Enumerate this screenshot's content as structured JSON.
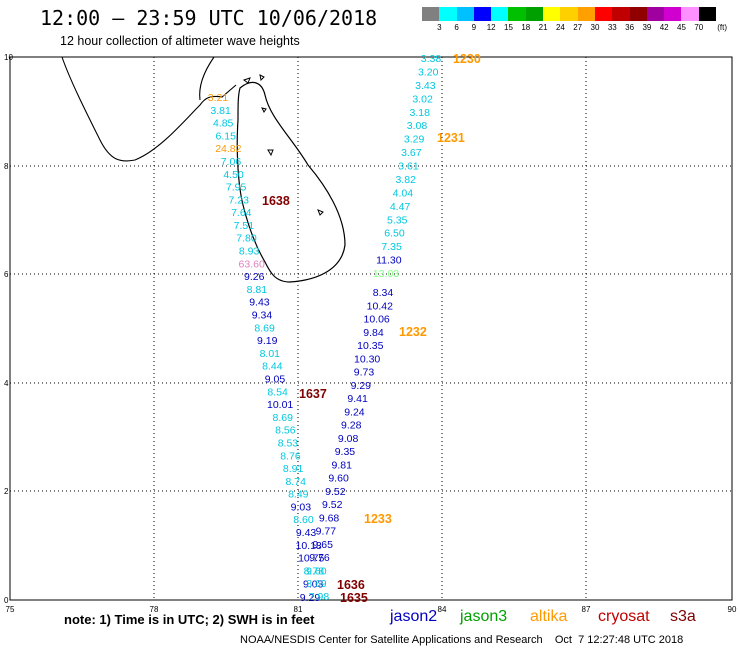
{
  "title": "12:00 – 23:59 UTC 10/06/2018",
  "subtitle": "12 hour collection of altimeter wave heights",
  "scale": {
    "unit_label": "(ft)",
    "colors": [
      "#808080",
      "#00ffff",
      "#00c0ff",
      "#0000ff",
      "#00ffff",
      "#00c000",
      "#00a000",
      "#ffff00",
      "#ffd000",
      "#ffa000",
      "#ff0000",
      "#c00000",
      "#900000",
      "#a000a0",
      "#d000d0",
      "#ff90ff",
      "#000000"
    ],
    "labels": [
      "3",
      "6",
      "9",
      "12",
      "15",
      "18",
      "21",
      "24",
      "27",
      "30",
      "33",
      "36",
      "39",
      "42",
      "45",
      "70"
    ]
  },
  "axes": {
    "x_ticks": [
      "75",
      "78",
      "81",
      "84",
      "87",
      "90"
    ],
    "y_ticks": [
      "10",
      "8",
      "6",
      "4",
      "2",
      "0"
    ]
  },
  "colors": {
    "jason2": "#0000c0",
    "jason3": "#00a000",
    "altika": "#ff9900",
    "cryosat": "#c00000",
    "s3a": "#800000",
    "cyan": "#00c8e0",
    "mauve": "#e080c0",
    "green_light": "#80ff80"
  },
  "track_times": {
    "east_top": "1230",
    "east_mid": "1231",
    "east_lower": "1232",
    "east_bottom": "1233",
    "west_top": "1638",
    "west_mid": "1637",
    "west_bottom_a": "1636",
    "west_bottom_b": "1635"
  },
  "east_track": [
    {
      "v": "3.38",
      "c": "cyan"
    },
    {
      "v": "3.20",
      "c": "cyan"
    },
    {
      "v": "3.43",
      "c": "cyan"
    },
    {
      "v": "3.02",
      "c": "cyan"
    },
    {
      "v": "3.18",
      "c": "cyan"
    },
    {
      "v": "3.08",
      "c": "cyan"
    },
    {
      "v": "3.29",
      "c": "cyan"
    },
    {
      "v": "3.67",
      "c": "cyan"
    },
    {
      "v": "3.61",
      "c": "cyan"
    },
    {
      "v": "3.82",
      "c": "cyan"
    },
    {
      "v": "4.04",
      "c": "cyan"
    },
    {
      "v": "4.47",
      "c": "cyan"
    },
    {
      "v": "5.35",
      "c": "cyan"
    },
    {
      "v": "6.50",
      "c": "cyan"
    },
    {
      "v": "7.35",
      "c": "cyan"
    },
    {
      "v": "11.30",
      "c": "jason2"
    },
    {
      "v": "13.03",
      "c": "green_light"
    }
  ],
  "east_track2": [
    {
      "v": "8.34",
      "c": "jason2"
    },
    {
      "v": "10.42",
      "c": "jason2"
    },
    {
      "v": "10.06",
      "c": "jason2"
    },
    {
      "v": "9.84",
      "c": "jason2"
    },
    {
      "v": "10.35",
      "c": "jason2"
    },
    {
      "v": "10.30",
      "c": "jason2"
    },
    {
      "v": "9.73",
      "c": "jason2"
    },
    {
      "v": "9.29",
      "c": "jason2"
    },
    {
      "v": "9.41",
      "c": "jason2"
    },
    {
      "v": "9.24",
      "c": "jason2"
    },
    {
      "v": "9.28",
      "c": "jason2"
    },
    {
      "v": "9.08",
      "c": "jason2"
    },
    {
      "v": "9.35",
      "c": "jason2"
    },
    {
      "v": "9.81",
      "c": "jason2"
    },
    {
      "v": "9.60",
      "c": "jason2"
    },
    {
      "v": "9.52",
      "c": "jason2"
    },
    {
      "v": "9.52",
      "c": "jason2"
    },
    {
      "v": "9.68",
      "c": "jason2"
    },
    {
      "v": "9.77",
      "c": "jason2"
    },
    {
      "v": "9.65",
      "c": "jason2"
    },
    {
      "v": "9.76",
      "c": "jason2"
    },
    {
      "v": "9.60",
      "c": "cyan"
    },
    {
      "v": "9.03",
      "c": "jason2"
    },
    {
      "v": "9.29",
      "c": "jason2"
    }
  ],
  "west_track": [
    {
      "v": "3.21",
      "c": "altika"
    },
    {
      "v": "3.81",
      "c": "cyan"
    },
    {
      "v": "4.85",
      "c": "cyan"
    },
    {
      "v": "6.15",
      "c": "cyan"
    },
    {
      "v": "24.82",
      "c": "altika"
    },
    {
      "v": "7.06",
      "c": "cyan"
    },
    {
      "v": "4.50",
      "c": "cyan"
    },
    {
      "v": "7.95",
      "c": "cyan"
    },
    {
      "v": "7.23",
      "c": "cyan"
    },
    {
      "v": "7.64",
      "c": "cyan"
    },
    {
      "v": "7.51",
      "c": "cyan"
    },
    {
      "v": "7.80",
      "c": "cyan"
    },
    {
      "v": "8.93",
      "c": "cyan"
    },
    {
      "v": "63.60",
      "c": "mauve"
    },
    {
      "v": "9.26",
      "c": "jason2"
    },
    {
      "v": "8.81",
      "c": "cyan"
    },
    {
      "v": "9.43",
      "c": "jason2"
    },
    {
      "v": "9.34",
      "c": "jason2"
    },
    {
      "v": "8.69",
      "c": "cyan"
    },
    {
      "v": "9.19",
      "c": "jason2"
    },
    {
      "v": "8.01",
      "c": "cyan"
    },
    {
      "v": "8.44",
      "c": "cyan"
    },
    {
      "v": "9.05",
      "c": "jason2"
    },
    {
      "v": "8.54",
      "c": "cyan"
    },
    {
      "v": "10.01",
      "c": "jason2"
    },
    {
      "v": "8.69",
      "c": "cyan"
    },
    {
      "v": "8.56",
      "c": "cyan"
    },
    {
      "v": "8.53",
      "c": "cyan"
    },
    {
      "v": "8.76",
      "c": "cyan"
    },
    {
      "v": "8.91",
      "c": "cyan"
    },
    {
      "v": "8.74",
      "c": "cyan"
    },
    {
      "v": "8.49",
      "c": "cyan"
    },
    {
      "v": "9.03",
      "c": "jason2"
    },
    {
      "v": "8.60",
      "c": "cyan"
    },
    {
      "v": "9.43",
      "c": "jason2"
    },
    {
      "v": "10.13",
      "c": "jason2"
    },
    {
      "v": "10.75",
      "c": "jason2"
    },
    {
      "v": "8.78",
      "c": "cyan"
    },
    {
      "v": "8.69",
      "c": "cyan"
    },
    {
      "v": "7.98",
      "c": "cyan"
    }
  ],
  "footer": {
    "note": "note:  1) Time is in UTC;  2) SWH is in feet",
    "credit": "NOAA/NESDIS Center for Satellite Applications and Research    Oct  7 12:27:48 UTC 2018"
  },
  "legend": [
    {
      "name": "jason2",
      "c": "jason2"
    },
    {
      "name": "jason3",
      "c": "jason3"
    },
    {
      "name": "altika",
      "c": "altika"
    },
    {
      "name": "cryosat",
      "c": "cryosat"
    },
    {
      "name": "s3a",
      "c": "s3a"
    }
  ]
}
